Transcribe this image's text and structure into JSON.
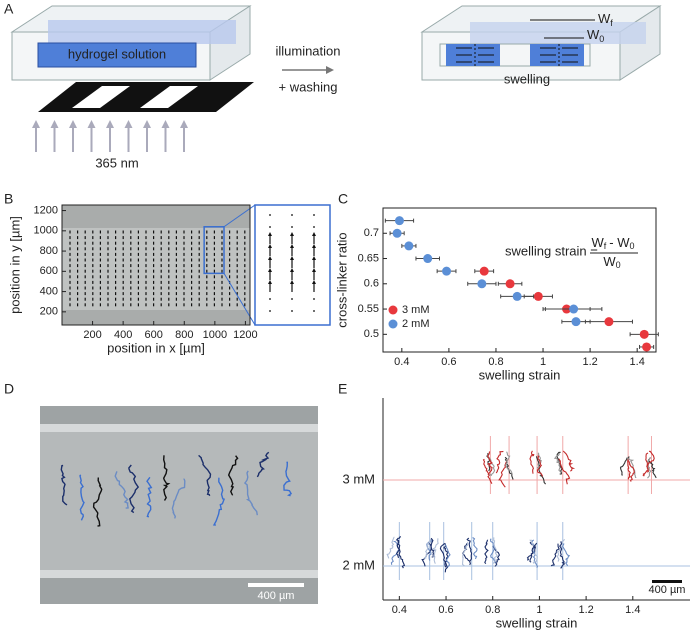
{
  "panel_labels": [
    "A",
    "B",
    "C",
    "D",
    "E"
  ],
  "diagram": {
    "solution": "hydrogel solution",
    "step": [
      "illumination",
      "+ washing"
    ],
    "wavelength": "365 nm",
    "result": "swelling",
    "wf": [
      "W",
      "f"
    ],
    "w0": [
      "W",
      "0"
    ]
  },
  "micrograph": {
    "scale_bar": "400 µm"
  },
  "chart_data": [
    {
      "type": "image",
      "xlabel": "position in x [µm]",
      "ylabel": "position in y [µm]",
      "xlim": [
        0,
        1230
      ],
      "ylim": [
        70,
        1255
      ],
      "xticks": [
        200,
        400,
        600,
        800,
        1000,
        1200
      ],
      "yticks": [
        200,
        400,
        600,
        800,
        1000,
        1200
      ]
    },
    {
      "type": "scatter",
      "xlabel": "swelling strain",
      "ylabel": "cross-linker ratio",
      "xlim": [
        0.32,
        1.48
      ],
      "ylim": [
        0.465,
        0.75
      ],
      "xticks": [
        0.4,
        0.6,
        0.8,
        1,
        1.2,
        1.4
      ],
      "yticks": [
        0.5,
        0.55,
        0.6,
        0.65,
        0.7
      ],
      "legend": "lower left",
      "annotation": {
        "lhs": "swelling strain =",
        "numerator": [
          "W",
          "f",
          "- W",
          "0"
        ],
        "denominator": [
          "W",
          "0"
        ]
      },
      "series": [
        {
          "name": "3 mM",
          "color": "#e8383d",
          "x": [
            0.75,
            0.86,
            0.98,
            1.1,
            1.28,
            1.43,
            1.44
          ],
          "y": [
            0.625,
            0.6,
            0.575,
            0.55,
            0.525,
            0.5,
            0.475
          ],
          "x_err": [
            0.04,
            0.05,
            0.06,
            0.1,
            0.1,
            0.06,
            0.03
          ]
        },
        {
          "name": "2 mM",
          "color": "#5b8fd6",
          "x": [
            0.39,
            0.38,
            0.43,
            0.51,
            0.59,
            0.74,
            0.89,
            1.13,
            1.14
          ],
          "y": [
            0.725,
            0.7,
            0.675,
            0.65,
            0.625,
            0.6,
            0.575,
            0.55,
            0.525
          ],
          "x_err": [
            0.06,
            0.03,
            0.03,
            0.05,
            0.04,
            0.06,
            0.07,
            0.12,
            0.06
          ]
        }
      ]
    },
    {
      "type": "tracks",
      "xlabel": "swelling strain",
      "xlim": [
        0.33,
        1.645
      ],
      "xticks": [
        0.4,
        0.6,
        0.8,
        1,
        1.2,
        1.4
      ],
      "scale_bar": "400 µm",
      "series": [
        {
          "name": "3 mM",
          "color": "#f0a8a8",
          "values": [
            0.79,
            0.87,
            0.99,
            1.1,
            1.38,
            1.48
          ]
        },
        {
          "name": "2 mM",
          "color": "#a8c0e0",
          "values": [
            0.4,
            0.53,
            0.59,
            0.71,
            0.8,
            0.99,
            1.1
          ]
        }
      ]
    }
  ]
}
